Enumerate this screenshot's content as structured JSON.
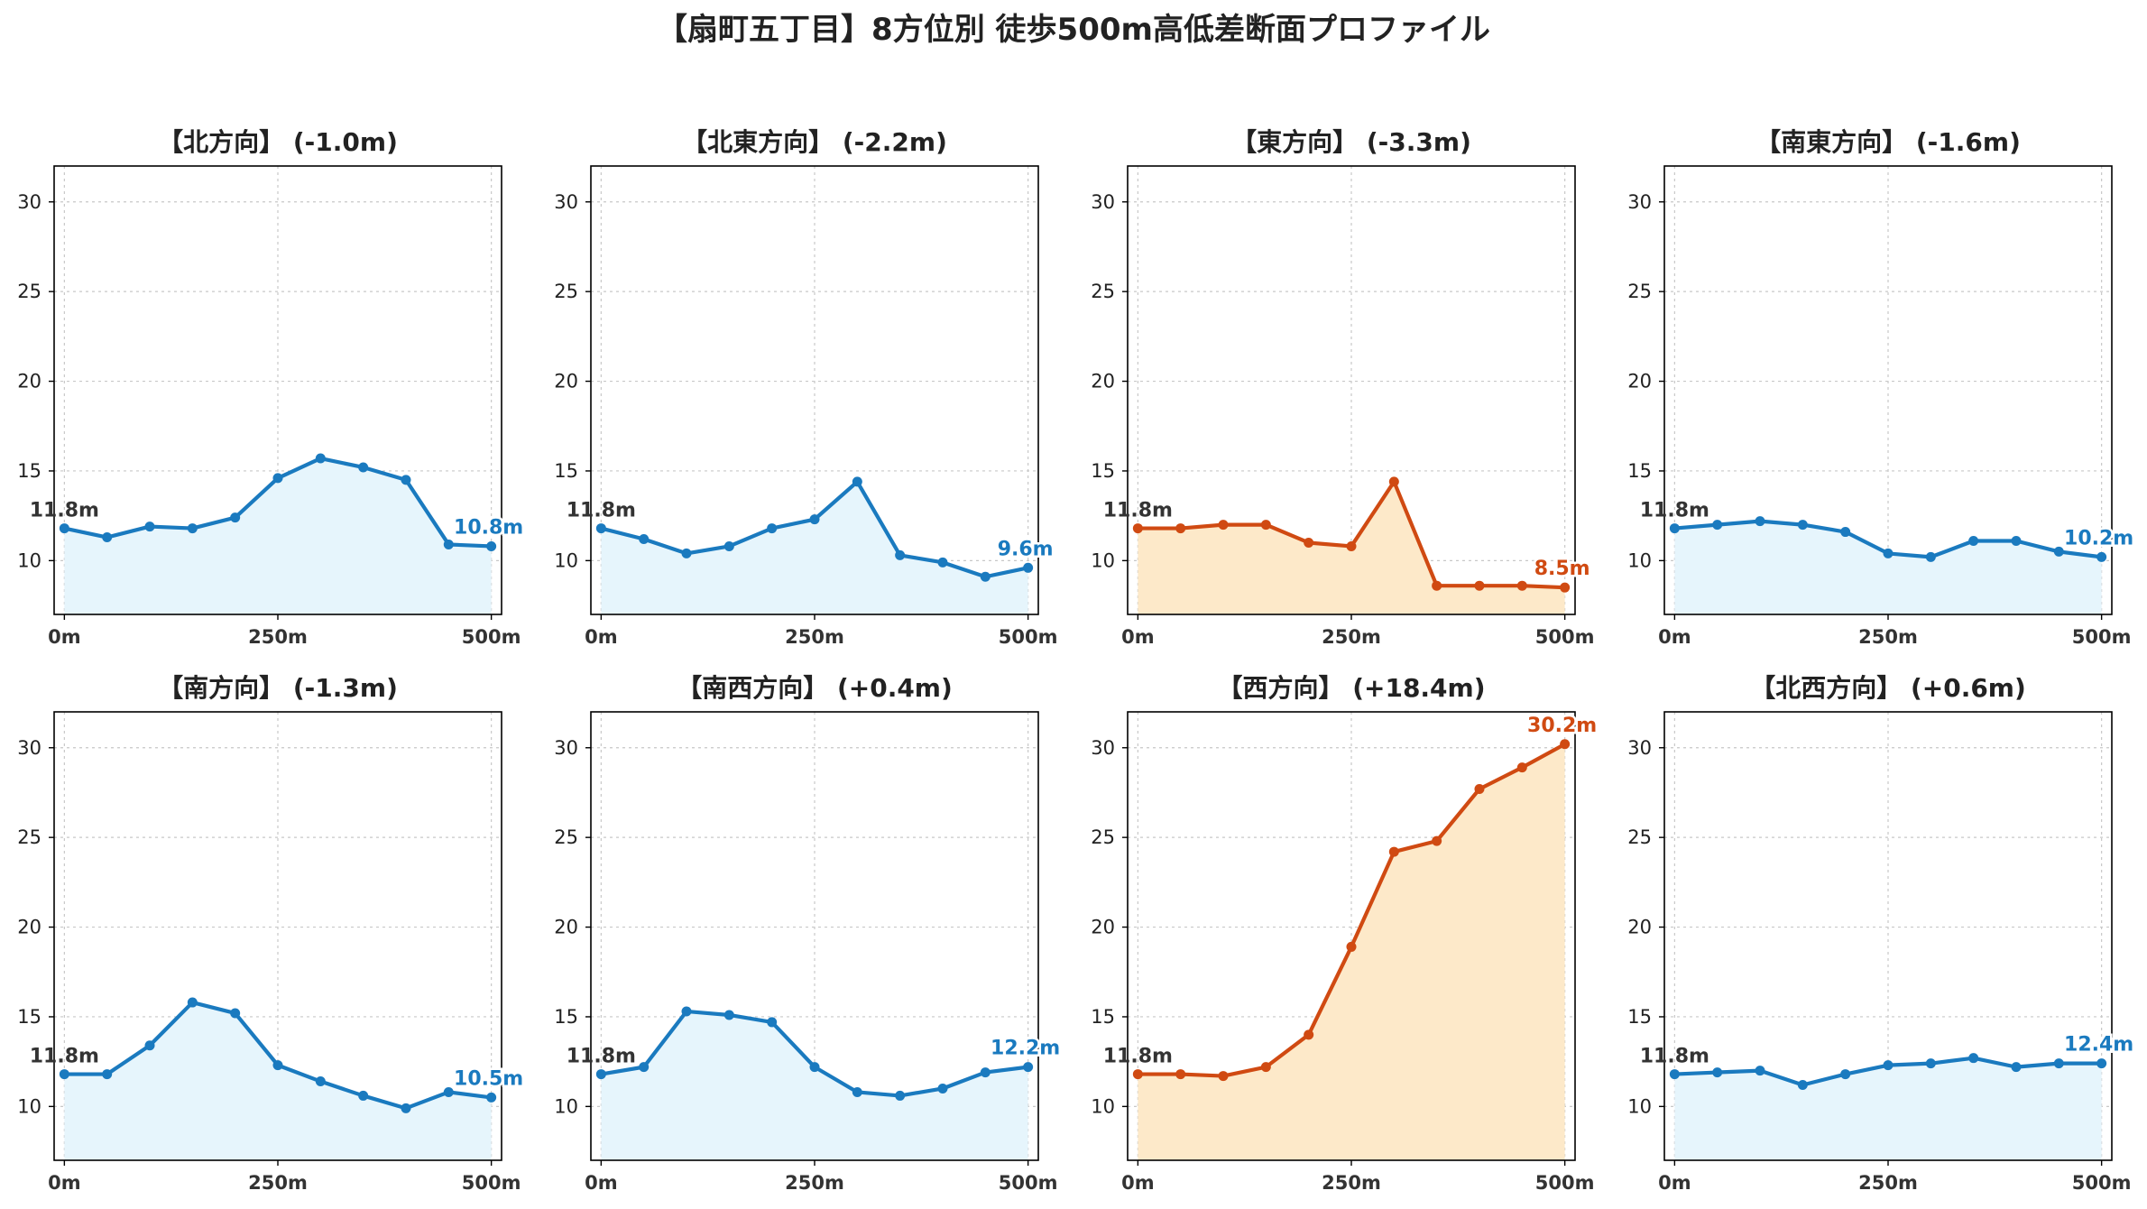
{
  "title": "【扇町五丁目】8方位別 徒歩500m高低差断面プロファイル",
  "colors": {
    "normal_line": "#1a7abf",
    "normal_fill": "#e6f5fc",
    "highlight_line": "#d04a12",
    "highlight_fill": "#fde9c9"
  },
  "chart_data": [
    {
      "type": "area",
      "title": "【北方向】 (-1.0m)",
      "highlight": false,
      "x": [
        0,
        50,
        100,
        150,
        200,
        250,
        300,
        350,
        400,
        450,
        500
      ],
      "values": [
        11.8,
        11.3,
        11.9,
        11.8,
        12.4,
        14.6,
        15.7,
        15.2,
        14.5,
        10.9,
        10.8
      ],
      "start_label": "11.8m",
      "end_label": "10.8m",
      "xticks": [
        "0m",
        "250m",
        "500m"
      ],
      "yticks": [
        10,
        15,
        20,
        25,
        30
      ],
      "ylim": [
        7,
        32
      ],
      "xlim": [
        -12,
        512
      ],
      "grid": true
    },
    {
      "type": "area",
      "title": "【北東方向】 (-2.2m)",
      "highlight": false,
      "x": [
        0,
        50,
        100,
        150,
        200,
        250,
        300,
        350,
        400,
        450,
        500
      ],
      "values": [
        11.8,
        11.2,
        10.4,
        10.8,
        11.8,
        12.3,
        14.4,
        10.3,
        9.9,
        9.1,
        9.6
      ],
      "start_label": "11.8m",
      "end_label": "9.6m",
      "xticks": [
        "0m",
        "250m",
        "500m"
      ],
      "yticks": [
        10,
        15,
        20,
        25,
        30
      ],
      "ylim": [
        7,
        32
      ],
      "xlim": [
        -12,
        512
      ],
      "grid": true
    },
    {
      "type": "area",
      "title": "【東方向】 (-3.3m)",
      "highlight": true,
      "x": [
        0,
        50,
        100,
        150,
        200,
        250,
        300,
        350,
        400,
        450,
        500
      ],
      "values": [
        11.8,
        11.8,
        12.0,
        12.0,
        11.0,
        10.8,
        14.4,
        8.6,
        8.6,
        8.6,
        8.5
      ],
      "start_label": "11.8m",
      "end_label": "8.5m",
      "xticks": [
        "0m",
        "250m",
        "500m"
      ],
      "yticks": [
        10,
        15,
        20,
        25,
        30
      ],
      "ylim": [
        7,
        32
      ],
      "xlim": [
        -12,
        512
      ],
      "grid": true
    },
    {
      "type": "area",
      "title": "【南東方向】 (-1.6m)",
      "highlight": false,
      "x": [
        0,
        50,
        100,
        150,
        200,
        250,
        300,
        350,
        400,
        450,
        500
      ],
      "values": [
        11.8,
        12.0,
        12.2,
        12.0,
        11.6,
        10.4,
        10.2,
        11.1,
        11.1,
        10.5,
        10.2
      ],
      "start_label": "11.8m",
      "end_label": "10.2m",
      "xticks": [
        "0m",
        "250m",
        "500m"
      ],
      "yticks": [
        10,
        15,
        20,
        25,
        30
      ],
      "ylim": [
        7,
        32
      ],
      "xlim": [
        -12,
        512
      ],
      "grid": true
    },
    {
      "type": "area",
      "title": "【南方向】 (-1.3m)",
      "highlight": false,
      "x": [
        0,
        50,
        100,
        150,
        200,
        250,
        300,
        350,
        400,
        450,
        500
      ],
      "values": [
        11.8,
        11.8,
        13.4,
        15.8,
        15.2,
        12.3,
        11.4,
        10.6,
        9.9,
        10.8,
        10.5
      ],
      "start_label": "11.8m",
      "end_label": "10.5m",
      "xticks": [
        "0m",
        "250m",
        "500m"
      ],
      "yticks": [
        10,
        15,
        20,
        25,
        30
      ],
      "ylim": [
        7,
        32
      ],
      "xlim": [
        -12,
        512
      ],
      "grid": true
    },
    {
      "type": "area",
      "title": "【南西方向】 (+0.4m)",
      "highlight": false,
      "x": [
        0,
        50,
        100,
        150,
        200,
        250,
        300,
        350,
        400,
        450,
        500
      ],
      "values": [
        11.8,
        12.2,
        15.3,
        15.1,
        14.7,
        12.2,
        10.8,
        10.6,
        11.0,
        11.9,
        12.2
      ],
      "start_label": "11.8m",
      "end_label": "12.2m",
      "xticks": [
        "0m",
        "250m",
        "500m"
      ],
      "yticks": [
        10,
        15,
        20,
        25,
        30
      ],
      "ylim": [
        7,
        32
      ],
      "xlim": [
        -12,
        512
      ],
      "grid": true
    },
    {
      "type": "area",
      "title": "【西方向】 (+18.4m)",
      "highlight": true,
      "x": [
        0,
        50,
        100,
        150,
        200,
        250,
        300,
        350,
        400,
        450,
        500
      ],
      "values": [
        11.8,
        11.8,
        11.7,
        12.2,
        14.0,
        18.9,
        24.2,
        24.8,
        27.7,
        28.9,
        30.2
      ],
      "start_label": "11.8m",
      "end_label": "30.2m",
      "xticks": [
        "0m",
        "250m",
        "500m"
      ],
      "yticks": [
        10,
        15,
        20,
        25,
        30
      ],
      "ylim": [
        7,
        32
      ],
      "xlim": [
        -12,
        512
      ],
      "grid": true
    },
    {
      "type": "area",
      "title": "【北西方向】 (+0.6m)",
      "highlight": false,
      "x": [
        0,
        50,
        100,
        150,
        200,
        250,
        300,
        350,
        400,
        450,
        500
      ],
      "values": [
        11.8,
        11.9,
        12.0,
        11.2,
        11.8,
        12.3,
        12.4,
        12.7,
        12.2,
        12.4,
        12.4
      ],
      "start_label": "11.8m",
      "end_label": "12.4m",
      "xticks": [
        "0m",
        "250m",
        "500m"
      ],
      "yticks": [
        10,
        15,
        20,
        25,
        30
      ],
      "ylim": [
        7,
        32
      ],
      "xlim": [
        -12,
        512
      ],
      "grid": true
    }
  ]
}
